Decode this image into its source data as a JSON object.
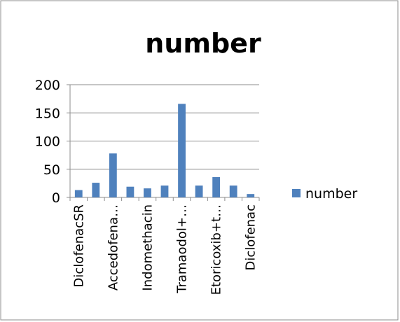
{
  "chart_data": {
    "type": "bar",
    "title": "number",
    "xlabel": "",
    "ylabel": "",
    "ylim": [
      0,
      200
    ],
    "yticks": [
      0,
      50,
      100,
      150,
      200
    ],
    "grid": true,
    "legend_position": "right",
    "categories": [
      "DiclofenacSR",
      "",
      "Accedofena…",
      "",
      "Indomethacin",
      "",
      "Tramaodol+…",
      "",
      "Etoricoxib+t…",
      "",
      "Diclofenac"
    ],
    "series": [
      {
        "name": "number",
        "color": "#4f81bd",
        "values": [
          13,
          26,
          78,
          19,
          16,
          21,
          166,
          21,
          36,
          21,
          6
        ]
      }
    ]
  }
}
